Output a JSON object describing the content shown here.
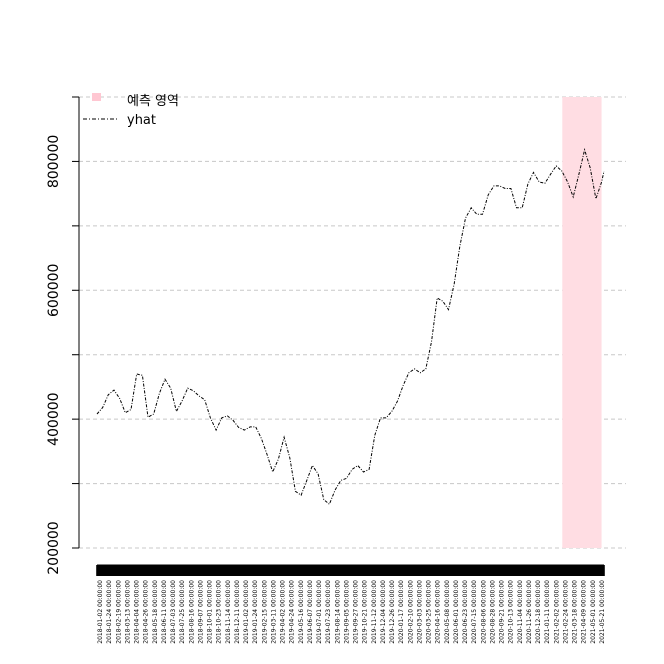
{
  "chart_data": {
    "type": "line",
    "title": "",
    "xlabel": "",
    "ylabel": "",
    "ylim": [
      200000,
      900000
    ],
    "yticks": [
      200000,
      400000,
      600000,
      800000
    ],
    "grid": true,
    "legend_position": "top-left",
    "legend": {
      "region_label": "예측 영역",
      "line_label": "yhat"
    },
    "forecast_region": {
      "start": "2021-02-24",
      "end": "2021-06-01",
      "color": "#ffdde3"
    },
    "x_tick_labels": [
      "2018-01-02 00:00:00",
      "2018-01-24 00:00:00",
      "2018-02-19 00:00:00",
      "2018-03-13 00:00:00",
      "2018-04-04 00:00:00",
      "2018-04-26 00:00:00",
      "2018-05-18 00:00:00",
      "2018-06-11 00:00:00",
      "2018-07-03 00:00:00",
      "2018-07-25 00:00:00",
      "2018-08-16 00:00:00",
      "2018-09-07 00:00:00",
      "2018-10-01 00:00:00",
      "2018-10-23 00:00:00",
      "2018-11-14 00:00:00",
      "2018-12-11 00:00:00",
      "2019-01-02 00:00:00",
      "2019-01-24 00:00:00",
      "2019-02-15 00:00:00",
      "2019-03-11 00:00:00",
      "2019-04-02 00:00:00",
      "2019-04-24 00:00:00",
      "2019-05-16 00:00:00",
      "2019-06-07 00:00:00",
      "2019-07-01 00:00:00",
      "2019-07-23 00:00:00",
      "2019-08-14 00:00:00",
      "2019-09-05 00:00:00",
      "2019-09-27 00:00:00",
      "2019-10-21 00:00:00",
      "2019-11-12 00:00:00",
      "2019-12-04 00:00:00",
      "2019-12-26 00:00:00",
      "2020-01-17 00:00:00",
      "2020-02-10 00:00:00",
      "2020-03-03 00:00:00",
      "2020-03-25 00:00:00",
      "2020-04-16 00:00:00",
      "2020-05-08 00:00:00",
      "2020-06-01 00:00:00",
      "2020-06-23 00:00:00",
      "2020-07-15 00:00:00",
      "2020-08-06 00:00:00",
      "2020-08-28 00:00:00",
      "2020-09-21 00:00:00",
      "2020-10-13 00:00:00",
      "2020-11-04 00:00:00",
      "2020-11-26 00:00:00",
      "2020-12-18 00:00:00",
      "2021-01-11 00:00:00",
      "2021-02-02 00:00:00",
      "2021-02-24 00:00:00",
      "2021-03-18 00:00:00",
      "2021-04-09 00:00:00",
      "2021-05-01 00:00:00",
      "2021-05-21 00:00:00"
    ],
    "series": [
      {
        "name": "yhat",
        "color": "#000000",
        "points": [
          [
            "2018-01-02",
            408000
          ],
          [
            "2018-01-16",
            418000
          ],
          [
            "2018-01-30",
            438000
          ],
          [
            "2018-02-13",
            445000
          ],
          [
            "2018-02-27",
            432000
          ],
          [
            "2018-03-13",
            410000
          ],
          [
            "2018-03-27",
            415000
          ],
          [
            "2018-04-10",
            470000
          ],
          [
            "2018-04-24",
            468000
          ],
          [
            "2018-05-08",
            403000
          ],
          [
            "2018-05-22",
            408000
          ],
          [
            "2018-06-05",
            440000
          ],
          [
            "2018-06-19",
            462000
          ],
          [
            "2018-07-03",
            448000
          ],
          [
            "2018-07-17",
            412000
          ],
          [
            "2018-07-31",
            428000
          ],
          [
            "2018-08-14",
            448000
          ],
          [
            "2018-08-28",
            444000
          ],
          [
            "2018-09-11",
            436000
          ],
          [
            "2018-09-25",
            430000
          ],
          [
            "2018-10-09",
            402000
          ],
          [
            "2018-10-23",
            383000
          ],
          [
            "2018-11-06",
            402000
          ],
          [
            "2018-11-20",
            405000
          ],
          [
            "2018-12-04",
            398000
          ],
          [
            "2018-12-18",
            387000
          ],
          [
            "2019-01-01",
            383000
          ],
          [
            "2019-01-15",
            388000
          ],
          [
            "2019-01-29",
            388000
          ],
          [
            "2019-02-12",
            370000
          ],
          [
            "2019-02-26",
            345000
          ],
          [
            "2019-03-12",
            318000
          ],
          [
            "2019-03-26",
            338000
          ],
          [
            "2019-04-09",
            372000
          ],
          [
            "2019-04-23",
            340000
          ],
          [
            "2019-05-07",
            288000
          ],
          [
            "2019-05-21",
            282000
          ],
          [
            "2019-06-04",
            305000
          ],
          [
            "2019-06-18",
            328000
          ],
          [
            "2019-07-02",
            315000
          ],
          [
            "2019-07-16",
            275000
          ],
          [
            "2019-07-30",
            268000
          ],
          [
            "2019-08-13",
            290000
          ],
          [
            "2019-08-27",
            305000
          ],
          [
            "2019-09-10",
            308000
          ],
          [
            "2019-09-24",
            322000
          ],
          [
            "2019-10-08",
            328000
          ],
          [
            "2019-10-22",
            318000
          ],
          [
            "2019-11-05",
            322000
          ],
          [
            "2019-11-19",
            375000
          ],
          [
            "2019-12-03",
            402000
          ],
          [
            "2019-12-17",
            402000
          ],
          [
            "2019-12-31",
            412000
          ],
          [
            "2020-01-14",
            428000
          ],
          [
            "2020-01-28",
            452000
          ],
          [
            "2020-02-11",
            472000
          ],
          [
            "2020-02-25",
            478000
          ],
          [
            "2020-03-10",
            472000
          ],
          [
            "2020-03-24",
            478000
          ],
          [
            "2020-04-07",
            520000
          ],
          [
            "2020-04-21",
            588000
          ],
          [
            "2020-05-05",
            583000
          ],
          [
            "2020-05-19",
            570000
          ],
          [
            "2020-06-02",
            610000
          ],
          [
            "2020-06-16",
            668000
          ],
          [
            "2020-06-30",
            712000
          ],
          [
            "2020-07-14",
            728000
          ],
          [
            "2020-07-28",
            718000
          ],
          [
            "2020-08-11",
            718000
          ],
          [
            "2020-08-25",
            748000
          ],
          [
            "2020-09-08",
            762000
          ],
          [
            "2020-09-22",
            762000
          ],
          [
            "2020-10-06",
            758000
          ],
          [
            "2020-10-20",
            758000
          ],
          [
            "2020-11-03",
            728000
          ],
          [
            "2020-11-17",
            728000
          ],
          [
            "2020-12-01",
            765000
          ],
          [
            "2020-12-15",
            783000
          ],
          [
            "2020-12-29",
            768000
          ],
          [
            "2021-01-12",
            766000
          ],
          [
            "2021-01-26",
            780000
          ],
          [
            "2021-02-09",
            793000
          ],
          [
            "2021-02-23",
            785000
          ],
          [
            "2021-03-09",
            768000
          ],
          [
            "2021-03-23",
            745000
          ],
          [
            "2021-04-06",
            780000
          ],
          [
            "2021-04-20",
            818000
          ],
          [
            "2021-05-04",
            790000
          ],
          [
            "2021-05-18",
            742000
          ],
          [
            "2021-06-01",
            768000
          ],
          [
            "2021-06-07",
            785000
          ]
        ]
      }
    ]
  }
}
